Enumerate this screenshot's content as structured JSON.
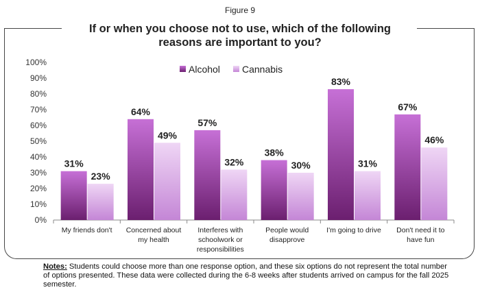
{
  "figure_label": "Figure 9",
  "chart_data": {
    "type": "bar",
    "title": "If or when you choose not to use, which of the following reasons are important to you?",
    "categories": [
      "My friends don't",
      "Concerned about my health",
      "Interferes with schoolwork or responsibilities",
      "People would disapprove",
      "I'm going to drive",
      "Don't need it to have fun"
    ],
    "category_lines": [
      [
        "My friends don't"
      ],
      [
        "Concerned about",
        "my health"
      ],
      [
        "Interferes with",
        "schoolwork or",
        "responsibilities"
      ],
      [
        "People would",
        "disapprove"
      ],
      [
        "I'm going to drive"
      ],
      [
        "Don't need it to",
        "have fun"
      ]
    ],
    "series": [
      {
        "name": "Alcohol",
        "values": [
          31,
          64,
          57,
          38,
          83,
          67
        ],
        "color": "#8a2d94"
      },
      {
        "name": "Cannabis",
        "values": [
          23,
          49,
          32,
          30,
          31,
          46
        ],
        "color": "#d9a6e6"
      }
    ],
    "ylim": [
      0,
      100
    ],
    "yticks": [
      "0%",
      "10%",
      "20%",
      "30%",
      "40%",
      "50%",
      "60%",
      "70%",
      "80%",
      "90%",
      "100%"
    ],
    "legend": "top-center",
    "grid": false
  },
  "notes": {
    "label": "Notes:",
    "text": " Students could choose more than one response option, and these six options do not represent the total number of options presented. These data were collected during the 6-8 weeks after students arrived on campus for the fall 2025 semester."
  }
}
